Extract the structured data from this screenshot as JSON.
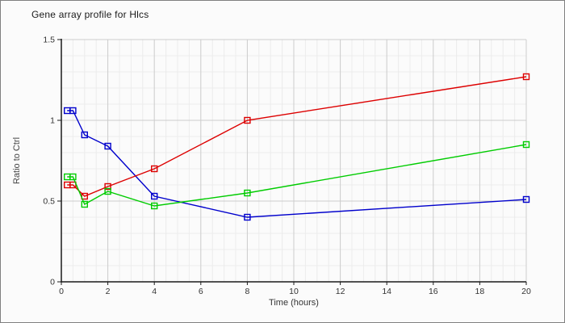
{
  "window": {
    "background": "#fbfbfb",
    "border_color": "#808080"
  },
  "chart_data": {
    "type": "line",
    "title": "Gene array profile for Hlcs",
    "xlabel": "Time (hours)",
    "ylabel": "Ratio to Ctrl",
    "xlim": [
      0,
      20
    ],
    "ylim": [
      0,
      1.5
    ],
    "x_ticks": [
      0,
      2,
      4,
      6,
      8,
      10,
      12,
      14,
      16,
      18,
      20
    ],
    "y_ticks": [
      0,
      0.5,
      1,
      1.5
    ],
    "x_minor_step": 0.5,
    "y_minor_step": 0.1,
    "grid": true,
    "legend": false,
    "marker": "open-square",
    "x": [
      0.25,
      0.5,
      1,
      2,
      4,
      8,
      20
    ],
    "series": [
      {
        "name": "blue-series",
        "color": "#0000cc",
        "values": [
          1.06,
          1.06,
          0.91,
          0.84,
          0.53,
          0.4,
          0.51
        ]
      },
      {
        "name": "red-series",
        "color": "#dd0000",
        "values": [
          0.6,
          0.6,
          0.53,
          0.59,
          0.7,
          1.0,
          1.27
        ]
      },
      {
        "name": "green-series",
        "color": "#00cc00",
        "values": [
          0.65,
          0.65,
          0.48,
          0.56,
          0.47,
          0.55,
          0.85
        ]
      }
    ],
    "colors": {
      "axis": "#1a1a1a",
      "grid_major": "#cccccc",
      "grid_minor": "#ececec",
      "tick_label": "#333333"
    }
  }
}
